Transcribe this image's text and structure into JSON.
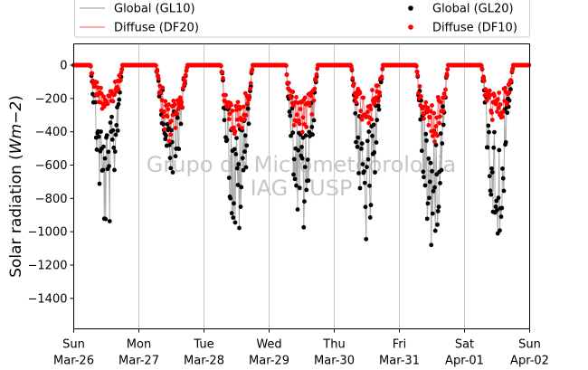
{
  "chart_data": {
    "type": "scatter",
    "ylabel": "Solar radiation ($Wm{-}2$)",
    "ylabel_parts": {
      "main": "Solar radiation (",
      "math": "Wm−2",
      "close": ")"
    },
    "ylim": [
      -1500,
      120
    ],
    "yticks": [
      0,
      -200,
      -400,
      -600,
      -800,
      -1000,
      -1200,
      -1400
    ],
    "xlim": [
      "2017-03-26",
      "2017-04-02"
    ],
    "xticks": [
      {
        "day": "Sun",
        "date": "Mar-26"
      },
      {
        "day": "Mon",
        "date": "Mar-27"
      },
      {
        "day": "Tue",
        "date": "Mar-28"
      },
      {
        "day": "Wed",
        "date": "Mar-29"
      },
      {
        "day": "Thu",
        "date": "Mar-30"
      },
      {
        "day": "Fri",
        "date": "Mar-31"
      },
      {
        "day": "Sat",
        "date": "Apr-01"
      },
      {
        "day": "Sun",
        "date": "Apr-02"
      }
    ],
    "grid": "vertical",
    "legend_placement": "top",
    "series": [
      {
        "name": "Global (GL10)",
        "style": "line",
        "color": "#aaaaaa"
      },
      {
        "name": "Diffuse (DF20)",
        "style": "line",
        "color": "#f08080"
      },
      {
        "name": "Global (GL20)",
        "style": "marker",
        "color": "#000000"
      },
      {
        "name": "Diffuse (DF10)",
        "style": "marker",
        "color": "#ff0000"
      }
    ],
    "daily_peaks": [
      {
        "date": "2017-03-26",
        "global_min": -1030,
        "diffuse_min": -280
      },
      {
        "date": "2017-03-27",
        "global_min": -700,
        "diffuse_min": -470
      },
      {
        "date": "2017-03-28",
        "global_min": -1080,
        "diffuse_min": -460
      },
      {
        "date": "2017-03-29",
        "global_min": -1050,
        "diffuse_min": -440
      },
      {
        "date": "2017-03-30",
        "global_min": -1100,
        "diffuse_min": -360
      },
      {
        "date": "2017-03-31",
        "global_min": -1130,
        "diffuse_min": -470
      },
      {
        "date": "2017-04-01",
        "global_min": -1050,
        "diffuse_min": -360
      }
    ],
    "sunrise_hour": 6.2,
    "sunset_hour": 17.9,
    "watermark": [
      "Grupo de Micrometeorologia",
      "IAG - USP"
    ]
  }
}
